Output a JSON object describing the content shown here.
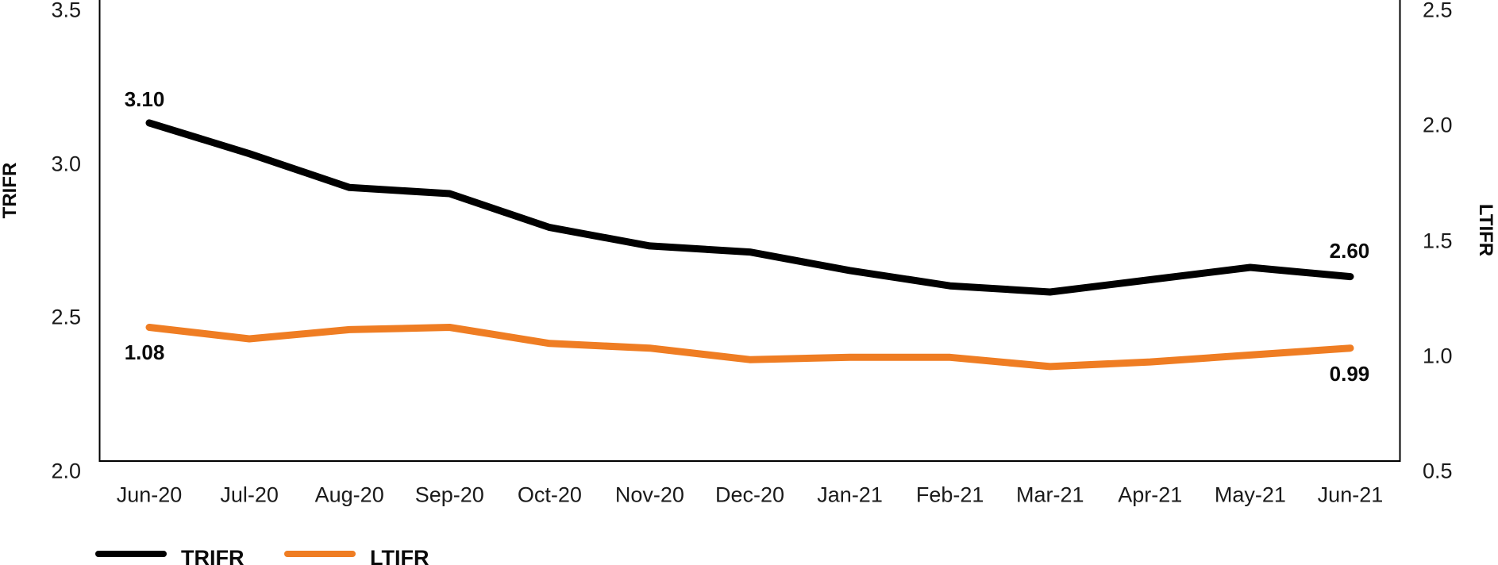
{
  "chart_data": {
    "type": "line",
    "categories": [
      "Jun-20",
      "Jul-20",
      "Aug-20",
      "Sep-20",
      "Oct-20",
      "Nov-20",
      "Dec-20",
      "Jan-21",
      "Feb-21",
      "Mar-21",
      "Apr-21",
      "May-21",
      "Jun-21"
    ],
    "series": [
      {
        "name": "TRIFR",
        "axis": "left",
        "color": "#000000",
        "values": [
          3.1,
          3.0,
          2.89,
          2.87,
          2.76,
          2.7,
          2.68,
          2.62,
          2.57,
          2.55,
          2.59,
          2.63,
          2.6
        ],
        "start_label": "3.10",
        "end_label": "2.60"
      },
      {
        "name": "LTIFR",
        "axis": "right",
        "color": "#EF7D23",
        "values": [
          1.08,
          1.03,
          1.07,
          1.08,
          1.01,
          0.99,
          0.94,
          0.95,
          0.95,
          0.91,
          0.93,
          0.96,
          0.99
        ],
        "start_label": "1.08",
        "end_label": "0.99"
      }
    ],
    "left_axis": {
      "title": "TRIFR",
      "min": 2.0,
      "max": 3.5,
      "ticks": [
        "3.5",
        "3.0",
        "2.5",
        "2.0"
      ],
      "tick_values": [
        3.5,
        3.0,
        2.5,
        2.0
      ]
    },
    "right_axis": {
      "title": "LTIFR",
      "min": 0.5,
      "max": 2.5,
      "ticks": [
        "2.5",
        "2.0",
        "1.5",
        "1.0",
        "0.5"
      ],
      "tick_values": [
        2.5,
        2.0,
        1.5,
        1.0,
        0.5
      ]
    },
    "legend": [
      {
        "label": "TRIFR",
        "color": "#000000"
      },
      {
        "label": "LTIFR",
        "color": "#EF7D23"
      }
    ],
    "grid": false,
    "legend_position": "bottom-left"
  }
}
